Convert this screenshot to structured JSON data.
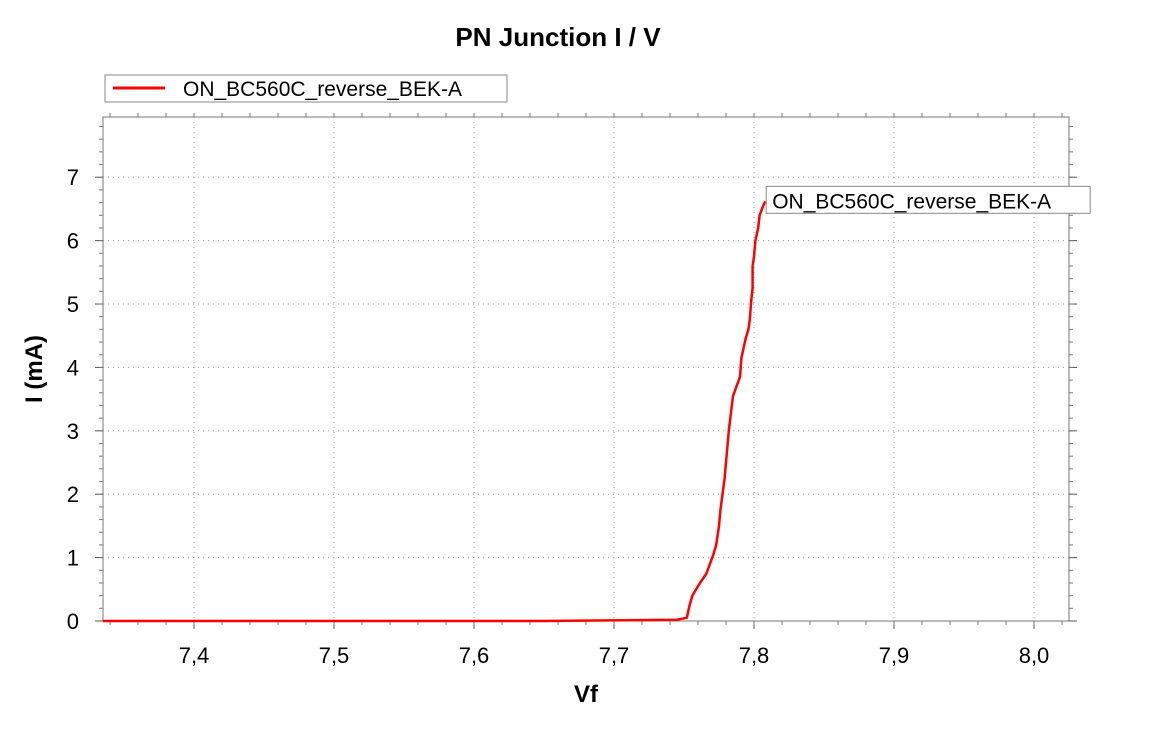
{
  "chart_data": {
    "type": "line",
    "title": "PN Junction I / V",
    "xlabel": "Vf",
    "ylabel": "I (mA)",
    "xlim": [
      7.335,
      8.025
    ],
    "ylim": [
      0,
      7.95
    ],
    "x_ticks": [
      7.4,
      7.5,
      7.6,
      7.7,
      7.8,
      7.9,
      8.0
    ],
    "x_tick_labels": [
      "7,4",
      "7,5",
      "7,6",
      "7,7",
      "7,8",
      "7,9",
      "8,0"
    ],
    "y_ticks": [
      0,
      1,
      2,
      3,
      4,
      5,
      6,
      7
    ],
    "y_tick_labels": [
      "0",
      "1",
      "2",
      "3",
      "4",
      "5",
      "6",
      "7"
    ],
    "grid": true,
    "legend_position": "top-left",
    "series": [
      {
        "name": "ON_BC560C_reverse_BEK-A",
        "color": "#ff0000",
        "x": [
          7.335,
          7.5,
          7.65,
          7.745,
          7.752,
          7.754,
          7.756,
          7.76,
          7.766,
          7.771,
          7.773,
          7.775,
          7.776,
          7.779,
          7.781,
          7.782,
          7.785,
          7.79,
          7.791,
          7.794,
          7.796,
          7.797,
          7.798,
          7.799,
          7.799,
          7.8,
          7.801,
          7.803,
          7.804,
          7.806,
          7.808
        ],
        "y": [
          0,
          0,
          0,
          0.02,
          0.05,
          0.25,
          0.4,
          0.55,
          0.75,
          1.05,
          1.2,
          1.5,
          1.75,
          2.25,
          2.75,
          3.0,
          3.55,
          3.85,
          4.15,
          4.45,
          4.6,
          4.75,
          5.05,
          5.25,
          5.6,
          5.75,
          6.0,
          6.2,
          6.4,
          6.52,
          6.62
        ]
      }
    ],
    "annotations": [
      {
        "text": "ON_BC560C_reverse_BEK-A",
        "x": 7.808,
        "y": 6.62
      }
    ]
  }
}
